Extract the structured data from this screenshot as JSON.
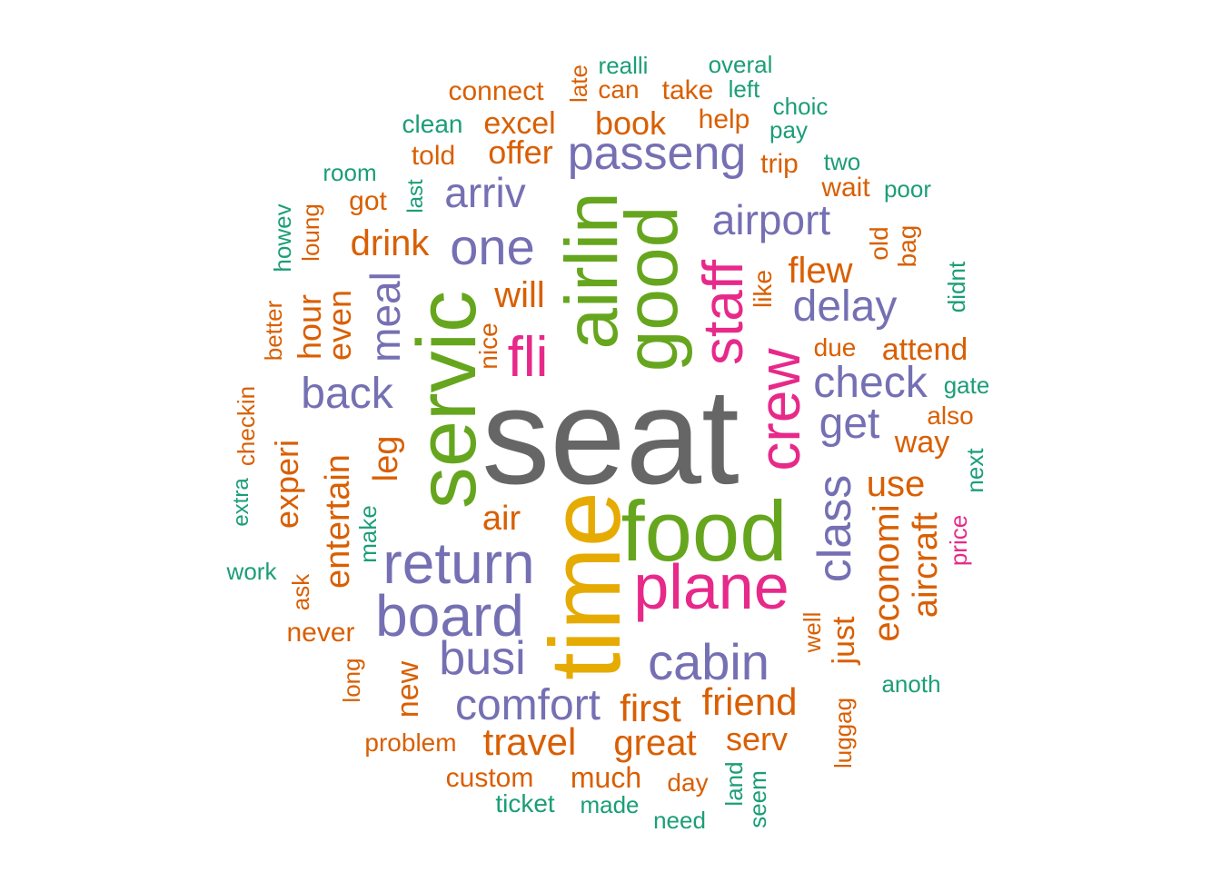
{
  "palette": {
    "gray": "#666666",
    "green": "#66a61e",
    "mustard": "#e6ab02",
    "magenta": "#e7298a",
    "purple": "#7570b3",
    "orange": "#d95f02",
    "teal": "#1b9e77"
  },
  "words": [
    {
      "text": "seat",
      "color": "gray",
      "rotated": false
    },
    {
      "text": "time",
      "color": "mustard",
      "rotated": true
    },
    {
      "text": "servic",
      "color": "green",
      "rotated": true
    },
    {
      "text": "food",
      "color": "green",
      "rotated": false
    },
    {
      "text": "airlin",
      "color": "green",
      "rotated": true
    },
    {
      "text": "good",
      "color": "green",
      "rotated": true
    },
    {
      "text": "plane",
      "color": "magenta",
      "rotated": false
    },
    {
      "text": "crew",
      "color": "magenta",
      "rotated": true
    },
    {
      "text": "staff",
      "color": "magenta",
      "rotated": true
    },
    {
      "text": "fli",
      "color": "magenta",
      "rotated": false
    },
    {
      "text": "return",
      "color": "purple",
      "rotated": false
    },
    {
      "text": "board",
      "color": "purple",
      "rotated": false
    },
    {
      "text": "one",
      "color": "purple",
      "rotated": false
    },
    {
      "text": "passeng",
      "color": "purple",
      "rotated": false
    },
    {
      "text": "cabin",
      "color": "purple",
      "rotated": false
    },
    {
      "text": "class",
      "color": "purple",
      "rotated": true
    },
    {
      "text": "comfort",
      "color": "purple",
      "rotated": false
    },
    {
      "text": "delay",
      "color": "purple",
      "rotated": false
    },
    {
      "text": "check",
      "color": "purple",
      "rotated": false
    },
    {
      "text": "get",
      "color": "purple",
      "rotated": false
    },
    {
      "text": "busi",
      "color": "purple",
      "rotated": false
    },
    {
      "text": "back",
      "color": "purple",
      "rotated": false
    },
    {
      "text": "airport",
      "color": "purple",
      "rotated": false
    },
    {
      "text": "arriv",
      "color": "purple",
      "rotated": false
    },
    {
      "text": "meal",
      "color": "purple",
      "rotated": true
    },
    {
      "text": "economi",
      "color": "orange",
      "rotated": true
    },
    {
      "text": "friend",
      "color": "orange",
      "rotated": false
    },
    {
      "text": "travel",
      "color": "orange",
      "rotated": false
    },
    {
      "text": "first",
      "color": "orange",
      "rotated": false
    },
    {
      "text": "great",
      "color": "orange",
      "rotated": false
    },
    {
      "text": "entertain",
      "color": "orange",
      "rotated": true
    },
    {
      "text": "flew",
      "color": "orange",
      "rotated": false
    },
    {
      "text": "will",
      "color": "orange",
      "rotated": false
    },
    {
      "text": "use",
      "color": "orange",
      "rotated": false
    },
    {
      "text": "drink",
      "color": "orange",
      "rotated": false
    },
    {
      "text": "experi",
      "color": "orange",
      "rotated": true
    },
    {
      "text": "aircraft",
      "color": "orange",
      "rotated": true
    },
    {
      "text": "air",
      "color": "orange",
      "rotated": false
    },
    {
      "text": "hour",
      "color": "orange",
      "rotated": true
    },
    {
      "text": "even",
      "color": "orange",
      "rotated": true
    },
    {
      "text": "leg",
      "color": "orange",
      "rotated": true
    },
    {
      "text": "attend",
      "color": "orange",
      "rotated": false
    },
    {
      "text": "book",
      "color": "orange",
      "rotated": false
    },
    {
      "text": "offer",
      "color": "orange",
      "rotated": false
    },
    {
      "text": "excel",
      "color": "orange",
      "rotated": false
    },
    {
      "text": "serv",
      "color": "orange",
      "rotated": false
    },
    {
      "text": "much",
      "color": "orange",
      "rotated": false
    },
    {
      "text": "new",
      "color": "orange",
      "rotated": true
    },
    {
      "text": "just",
      "color": "orange",
      "rotated": true
    },
    {
      "text": "way",
      "color": "orange",
      "rotated": false
    },
    {
      "text": "custom",
      "color": "orange",
      "rotated": false
    },
    {
      "text": "never",
      "color": "orange",
      "rotated": false
    },
    {
      "text": "connect",
      "color": "orange",
      "rotated": false
    },
    {
      "text": "told",
      "color": "orange",
      "rotated": false
    },
    {
      "text": "got",
      "color": "orange",
      "rotated": false
    },
    {
      "text": "help",
      "color": "orange",
      "rotated": false
    },
    {
      "text": "take",
      "color": "orange",
      "rotated": false
    },
    {
      "text": "trip",
      "color": "orange",
      "rotated": false
    },
    {
      "text": "wait",
      "color": "orange",
      "rotated": false
    },
    {
      "text": "day",
      "color": "orange",
      "rotated": false
    },
    {
      "text": "problem",
      "color": "orange",
      "rotated": false
    },
    {
      "text": "can",
      "color": "orange",
      "rotated": false
    },
    {
      "text": "like",
      "color": "orange",
      "rotated": true
    },
    {
      "text": "nice",
      "color": "orange",
      "rotated": true
    },
    {
      "text": "due",
      "color": "orange",
      "rotated": false
    },
    {
      "text": "also",
      "color": "orange",
      "rotated": false
    },
    {
      "text": "bag",
      "color": "orange",
      "rotated": true
    },
    {
      "text": "old",
      "color": "orange",
      "rotated": true
    },
    {
      "text": "loung",
      "color": "orange",
      "rotated": true
    },
    {
      "text": "better",
      "color": "orange",
      "rotated": true
    },
    {
      "text": "ask",
      "color": "orange",
      "rotated": true
    },
    {
      "text": "long",
      "color": "orange",
      "rotated": true
    },
    {
      "text": "late",
      "color": "orange",
      "rotated": true
    },
    {
      "text": "luggag",
      "color": "orange",
      "rotated": true
    },
    {
      "text": "well",
      "color": "orange",
      "rotated": true
    },
    {
      "text": "price",
      "color": "magenta",
      "rotated": true
    },
    {
      "text": "checkin",
      "color": "orange",
      "rotated": true
    },
    {
      "text": "realli",
      "color": "teal",
      "rotated": false
    },
    {
      "text": "overal",
      "color": "teal",
      "rotated": false
    },
    {
      "text": "left",
      "color": "teal",
      "rotated": false
    },
    {
      "text": "choic",
      "color": "teal",
      "rotated": false
    },
    {
      "text": "pay",
      "color": "teal",
      "rotated": false
    },
    {
      "text": "clean",
      "color": "teal",
      "rotated": false
    },
    {
      "text": "room",
      "color": "teal",
      "rotated": false
    },
    {
      "text": "two",
      "color": "teal",
      "rotated": false
    },
    {
      "text": "poor",
      "color": "teal",
      "rotated": false
    },
    {
      "text": "last",
      "color": "teal",
      "rotated": true
    },
    {
      "text": "howev",
      "color": "teal",
      "rotated": true
    },
    {
      "text": "didnt",
      "color": "teal",
      "rotated": true
    },
    {
      "text": "gate",
      "color": "teal",
      "rotated": false
    },
    {
      "text": "next",
      "color": "teal",
      "rotated": true
    },
    {
      "text": "extra",
      "color": "teal",
      "rotated": true
    },
    {
      "text": "make",
      "color": "teal",
      "rotated": true
    },
    {
      "text": "work",
      "color": "teal",
      "rotated": false
    },
    {
      "text": "anoth",
      "color": "teal",
      "rotated": false
    },
    {
      "text": "ticket",
      "color": "teal",
      "rotated": false
    },
    {
      "text": "made",
      "color": "teal",
      "rotated": false
    },
    {
      "text": "need",
      "color": "teal",
      "rotated": false
    },
    {
      "text": "land",
      "color": "teal",
      "rotated": true
    },
    {
      "text": "seem",
      "color": "teal",
      "rotated": true
    }
  ]
}
